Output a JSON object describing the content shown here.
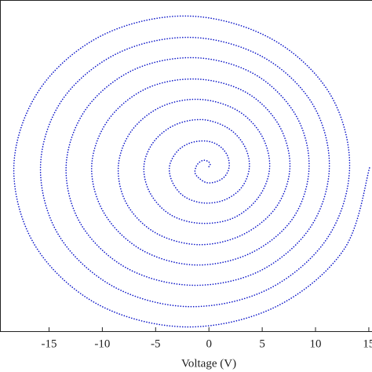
{
  "chart_data": {
    "type": "line",
    "x_label": "Voltage (V)",
    "color": "#0a14c8",
    "x": [
      0,
      0.1,
      0.1,
      -0.1,
      -0.5,
      -0.9,
      -1.2,
      -1.3,
      -0.9,
      -0.2,
      0.7,
      1.5,
      1.9,
      1.7,
      0.9,
      -0.3,
      -1.8,
      -3.0,
      -3.7,
      -3.4,
      -2.3,
      -0.5,
      1.5,
      3.1,
      3.8,
      3.3,
      1.8,
      -0.6,
      -3.2,
      -5.2,
      -6.1,
      -5.5,
      -3.6,
      -0.8,
      2.3,
      4.7,
      5.7,
      4.9,
      2.6,
      -0.9,
      -4.5,
      -7.3,
      -8.5,
      -7.7,
      -5.0,
      -1.0,
      3.1,
      6.3,
      7.6,
      6.5,
      3.4,
      -1.2,
      -5.9,
      -9.5,
      -11.0,
      -9.8,
      -6.3,
      -1.3,
      3.9,
      7.9,
      9.4,
      8.1,
      4.2,
      -1.4,
      -7.2,
      -11.6,
      -13.4,
      -12.0,
      -7.7,
      -1.6,
      4.7,
      9.5,
      11.3,
      9.7,
      5.0,
      -1.7,
      -8.6,
      -13.8,
      -15.8,
      -14.1,
      -9.0,
      -1.9,
      5.5,
      11.1,
      13.2,
      11.3,
      5.8,
      -2.0,
      -10.0,
      -15.9,
      -18.3,
      -16.3,
      -10.4,
      -2.1,
      6.3,
      12.7,
      15.1
    ],
    "values": [
      0,
      0.1,
      0.3,
      0.5,
      0.6,
      0.4,
      0,
      -0.6,
      -1.1,
      -1.5,
      -1.4,
      -0.9,
      0,
      1.1,
      2.0,
      2.4,
      2.2,
      1.4,
      0,
      -1.5,
      -2.8,
      -3.4,
      -3.1,
      -1.9,
      0,
      2.0,
      3.6,
      4.4,
      3.9,
      2.3,
      0,
      -2.5,
      -4.5,
      -5.3,
      -4.8,
      -2.8,
      0,
      3.0,
      5.3,
      6.3,
      5.6,
      3.3,
      0,
      -3.5,
      -6.2,
      -7.3,
      -6.4,
      -3.8,
      0,
      4.0,
      7.0,
      8.2,
      7.3,
      4.3,
      0,
      -4.4,
      -7.8,
      -9.2,
      -8.1,
      -4.8,
      0,
      4.9,
      8.7,
      10.2,
      9.0,
      5.3,
      0,
      -5.4,
      -9.5,
      -11.1,
      -9.8,
      -5.7,
      0,
      5.9,
      10.3,
      12.1,
      10.6,
      6.2,
      0,
      -6.4,
      -11.2,
      -13.1,
      -11.5,
      -6.7,
      0,
      6.9,
      12.0,
      14.1,
      12.3,
      7.2,
      0,
      -7.4,
      -12.9,
      -15.0,
      -13.1,
      -7.7,
      0
    ],
    "xlim": [
      -19.6,
      15.3
    ],
    "xticks": [
      -15,
      -10,
      -5,
      0,
      5,
      10,
      15
    ],
    "ylim": [
      -15.4,
      15.6
    ]
  }
}
